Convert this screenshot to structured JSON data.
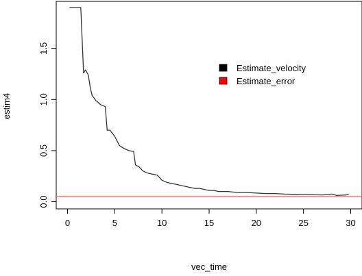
{
  "chart_data": {
    "type": "line",
    "xlabel": "vec_time",
    "ylabel": "estim4",
    "xlim": [
      -1.2,
      31.2
    ],
    "ylim": [
      -0.07,
      1.96
    ],
    "xticks": [
      0,
      5,
      10,
      15,
      20,
      25,
      30
    ],
    "xtick_labels": [
      "0",
      "5",
      "10",
      "15",
      "20",
      "25",
      "30"
    ],
    "yticks": [
      0.0,
      0.5,
      1.0,
      1.5
    ],
    "ytick_labels": [
      "0.0",
      "0.5",
      "1.0",
      "1.5"
    ],
    "grid": false,
    "legend_position": "top-right",
    "series": [
      {
        "name": "Estimate_velocity",
        "color": "#000000",
        "line_color": "#333333",
        "x": [
          0.2,
          1.4,
          1.7,
          1.9,
          2.2,
          2.4,
          2.6,
          3.0,
          3.5,
          4.0,
          4.2,
          4.5,
          5.0,
          5.5,
          6.0,
          6.5,
          7.0,
          7.2,
          7.6,
          8.0,
          8.5,
          9.0,
          9.5,
          10.0,
          10.5,
          11.0,
          12.0,
          13.0,
          13.5,
          14.0,
          15.0,
          15.5,
          16.0,
          17.0,
          18.0,
          19.0,
          20.0,
          21.0,
          22.0,
          23.0,
          24.0,
          25.0,
          26.0,
          27.0,
          28.0,
          28.5,
          29.0,
          29.5,
          29.8
        ],
        "values": [
          1.9,
          1.9,
          1.26,
          1.29,
          1.24,
          1.12,
          1.04,
          0.99,
          0.95,
          0.93,
          0.7,
          0.7,
          0.64,
          0.55,
          0.52,
          0.5,
          0.49,
          0.36,
          0.34,
          0.3,
          0.28,
          0.27,
          0.26,
          0.21,
          0.19,
          0.18,
          0.16,
          0.14,
          0.13,
          0.13,
          0.11,
          0.11,
          0.1,
          0.1,
          0.09,
          0.09,
          0.085,
          0.08,
          0.08,
          0.075,
          0.072,
          0.07,
          0.068,
          0.067,
          0.075,
          0.062,
          0.064,
          0.066,
          0.075
        ]
      },
      {
        "name": "Estimate_error",
        "color": "#ff0000",
        "line_color": "#ff4d4d",
        "type": "hline",
        "value": 0.05
      }
    ]
  }
}
